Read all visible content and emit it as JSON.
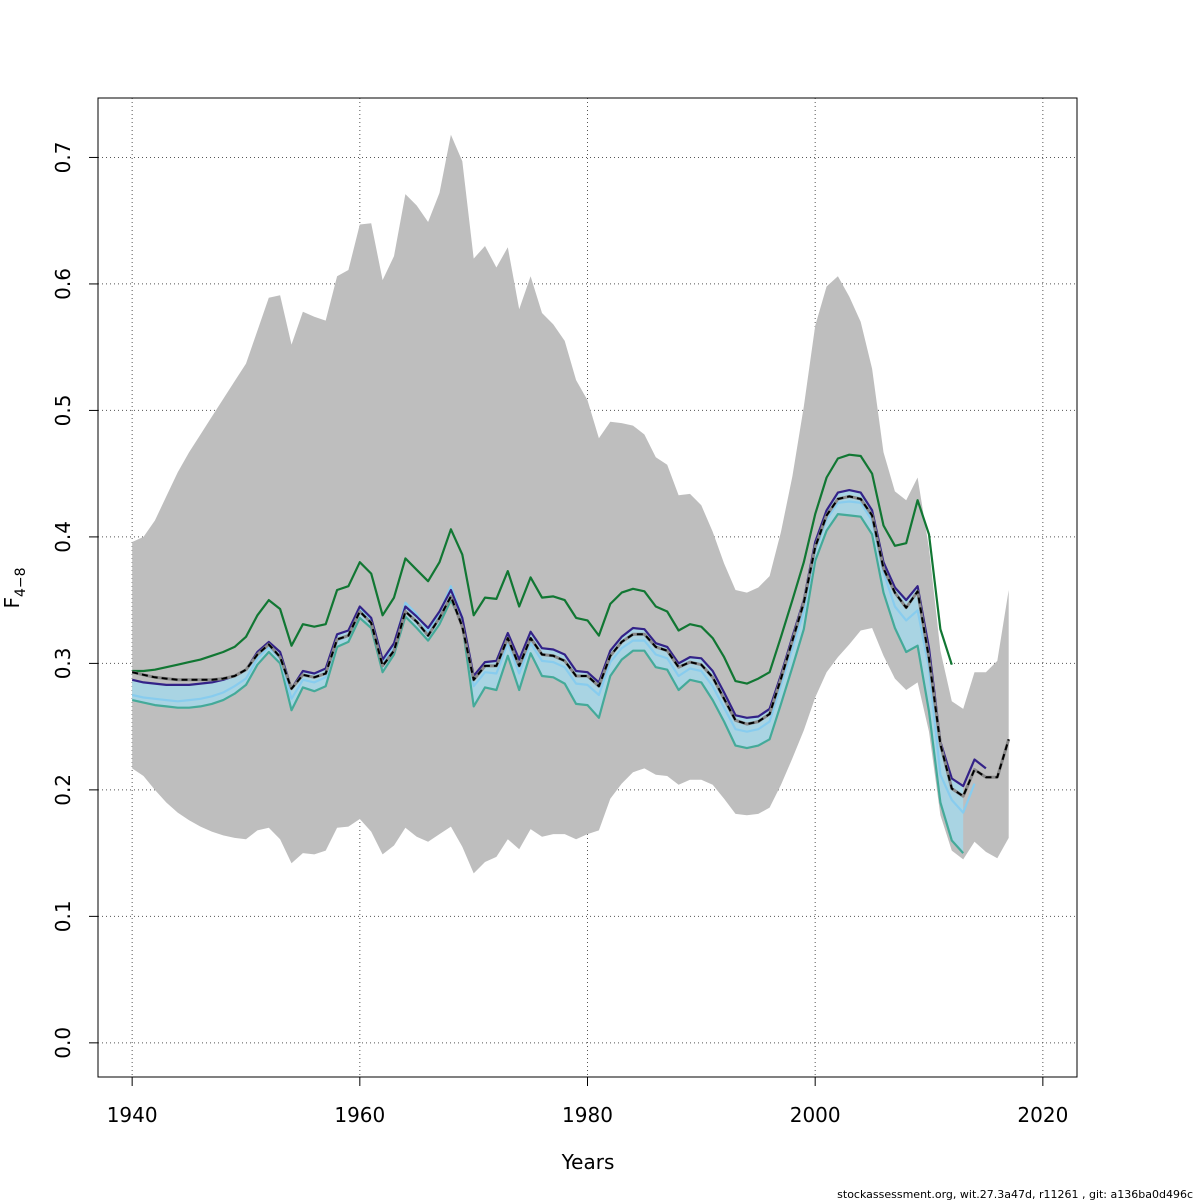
{
  "chart_data": {
    "type": "line",
    "xlabel": "Years",
    "ylabel": "F",
    "ylabel_sub": "4−8",
    "xlim": [
      1937,
      2023
    ],
    "ylim": [
      -0.027,
      0.747
    ],
    "x_ticks": [
      1940,
      1960,
      1980,
      2000,
      2020
    ],
    "x_tick_labels": [
      "1940",
      "1960",
      "1980",
      "2000",
      "2020"
    ],
    "y_ticks": [
      0.0,
      0.1,
      0.2,
      0.3,
      0.4,
      0.5,
      0.6,
      0.7
    ],
    "y_tick_labels": [
      "0.0",
      "0.1",
      "0.2",
      "0.3",
      "0.4",
      "0.5",
      "0.6",
      "0.7"
    ],
    "grid": true,
    "footer": "stockassessment.org, wit.27.3a47d, r11261 , git: a136ba0d496c",
    "colors": {
      "band": "#bebebe",
      "inner_band": "#a9d4e3",
      "green": "#117733",
      "teal": "#44aa99",
      "purple": "#332288",
      "lightblue": "#88ccee",
      "black": "#000000"
    },
    "band": {
      "x": [
        1940,
        1941,
        1942,
        1943,
        1944,
        1945,
        1946,
        1947,
        1948,
        1949,
        1950,
        1951,
        1952,
        1953,
        1954,
        1955,
        1956,
        1957,
        1958,
        1959,
        1960,
        1961,
        1962,
        1963,
        1964,
        1965,
        1966,
        1967,
        1968,
        1969,
        1970,
        1971,
        1972,
        1973,
        1974,
        1975,
        1976,
        1977,
        1978,
        1979,
        1980,
        1981,
        1982,
        1983,
        1984,
        1985,
        1986,
        1987,
        1988,
        1989,
        1990,
        1991,
        1992,
        1993,
        1994,
        1995,
        1996,
        1997,
        1998,
        1999,
        2000,
        2001,
        2002,
        2003,
        2004,
        2005,
        2006,
        2007,
        2008,
        2009,
        2010,
        2011,
        2012,
        2013,
        2014,
        2015,
        2016,
        2017
      ],
      "upper": [
        0.396,
        0.4,
        0.413,
        0.432,
        0.451,
        0.467,
        0.481,
        0.495,
        0.509,
        0.523,
        0.537,
        0.563,
        0.589,
        0.591,
        0.552,
        0.578,
        0.574,
        0.571,
        0.606,
        0.611,
        0.647,
        0.648,
        0.603,
        0.622,
        0.671,
        0.662,
        0.649,
        0.672,
        0.718,
        0.697,
        0.62,
        0.63,
        0.613,
        0.629,
        0.58,
        0.606,
        0.577,
        0.568,
        0.555,
        0.524,
        0.508,
        0.478,
        0.491,
        0.49,
        0.488,
        0.481,
        0.463,
        0.457,
        0.433,
        0.434,
        0.425,
        0.404,
        0.379,
        0.358,
        0.356,
        0.36,
        0.369,
        0.404,
        0.448,
        0.503,
        0.567,
        0.598,
        0.606,
        0.59,
        0.57,
        0.533,
        0.467,
        0.436,
        0.429,
        0.447,
        0.391,
        0.31,
        0.27,
        0.264,
        0.293,
        0.293,
        0.302,
        0.358
      ],
      "lower": [
        0.217,
        0.211,
        0.2,
        0.19,
        0.182,
        0.176,
        0.171,
        0.167,
        0.164,
        0.162,
        0.161,
        0.168,
        0.17,
        0.161,
        0.142,
        0.15,
        0.149,
        0.152,
        0.17,
        0.171,
        0.177,
        0.167,
        0.149,
        0.156,
        0.17,
        0.163,
        0.159,
        0.165,
        0.171,
        0.155,
        0.134,
        0.143,
        0.147,
        0.161,
        0.153,
        0.169,
        0.163,
        0.165,
        0.165,
        0.161,
        0.165,
        0.168,
        0.193,
        0.205,
        0.214,
        0.217,
        0.212,
        0.211,
        0.204,
        0.208,
        0.208,
        0.204,
        0.193,
        0.181,
        0.18,
        0.181,
        0.186,
        0.204,
        0.225,
        0.247,
        0.273,
        0.293,
        0.305,
        0.315,
        0.326,
        0.328,
        0.306,
        0.288,
        0.279,
        0.285,
        0.246,
        0.18,
        0.152,
        0.145,
        0.159,
        0.151,
        0.146,
        0.162
      ]
    },
    "series": [
      {
        "color": "green",
        "x": [
          1940,
          1941,
          1942,
          1943,
          1944,
          1945,
          1946,
          1947,
          1948,
          1949,
          1950,
          1951,
          1952,
          1953,
          1954,
          1955,
          1956,
          1957,
          1958,
          1959,
          1960,
          1961,
          1962,
          1963,
          1964,
          1965,
          1966,
          1967,
          1968,
          1969,
          1970,
          1971,
          1972,
          1973,
          1974,
          1975,
          1976,
          1977,
          1978,
          1979,
          1980,
          1981,
          1982,
          1983,
          1984,
          1985,
          1986,
          1987,
          1988,
          1989,
          1990,
          1991,
          1992,
          1993,
          1994,
          1995,
          1996,
          1997,
          1998,
          1999,
          2000,
          2001,
          2002,
          2003,
          2004,
          2005,
          2006,
          2007,
          2008,
          2009,
          2010,
          2011,
          2012
        ],
        "y": [
          0.294,
          0.294,
          0.295,
          0.297,
          0.299,
          0.301,
          0.303,
          0.306,
          0.309,
          0.313,
          0.321,
          0.338,
          0.35,
          0.343,
          0.314,
          0.331,
          0.329,
          0.331,
          0.358,
          0.361,
          0.38,
          0.371,
          0.338,
          0.352,
          0.383,
          0.374,
          0.365,
          0.38,
          0.406,
          0.386,
          0.338,
          0.352,
          0.351,
          0.373,
          0.345,
          0.368,
          0.352,
          0.353,
          0.35,
          0.336,
          0.334,
          0.322,
          0.347,
          0.356,
          0.359,
          0.357,
          0.345,
          0.341,
          0.326,
          0.331,
          0.329,
          0.32,
          0.305,
          0.286,
          0.284,
          0.288,
          0.293,
          0.321,
          0.35,
          0.38,
          0.418,
          0.447,
          0.462,
          0.465,
          0.464,
          0.45,
          0.409,
          0.393,
          0.395,
          0.429,
          0.402,
          0.327,
          0.299
        ]
      },
      {
        "color": "teal",
        "x": [
          1940,
          1941,
          1942,
          1943,
          1944,
          1945,
          1946,
          1947,
          1948,
          1949,
          1950,
          1951,
          1952,
          1953,
          1954,
          1955,
          1956,
          1957,
          1958,
          1959,
          1960,
          1961,
          1962,
          1963,
          1964,
          1965,
          1966,
          1967,
          1968,
          1969,
          1970,
          1971,
          1972,
          1973,
          1974,
          1975,
          1976,
          1977,
          1978,
          1979,
          1980,
          1981,
          1982,
          1983,
          1984,
          1985,
          1986,
          1987,
          1988,
          1989,
          1990,
          1991,
          1992,
          1993,
          1994,
          1995,
          1996,
          1997,
          1998,
          1999,
          2000,
          2001,
          2002,
          2003,
          2004,
          2005,
          2006,
          2007,
          2008,
          2009,
          2010,
          2011,
          2012,
          2013
        ],
        "y": [
          0.271,
          0.269,
          0.267,
          0.266,
          0.265,
          0.265,
          0.266,
          0.268,
          0.271,
          0.276,
          0.283,
          0.299,
          0.309,
          0.3,
          0.263,
          0.281,
          0.278,
          0.282,
          0.313,
          0.317,
          0.336,
          0.328,
          0.293,
          0.307,
          0.337,
          0.328,
          0.318,
          0.331,
          0.35,
          0.331,
          0.266,
          0.281,
          0.279,
          0.306,
          0.279,
          0.308,
          0.29,
          0.289,
          0.284,
          0.268,
          0.267,
          0.257,
          0.29,
          0.303,
          0.31,
          0.31,
          0.297,
          0.295,
          0.279,
          0.287,
          0.285,
          0.271,
          0.254,
          0.235,
          0.233,
          0.235,
          0.24,
          0.268,
          0.297,
          0.327,
          0.381,
          0.405,
          0.418,
          0.417,
          0.416,
          0.402,
          0.356,
          0.328,
          0.309,
          0.314,
          0.262,
          0.19,
          0.16,
          0.15
        ]
      },
      {
        "color": "lightblue",
        "x": [
          1940,
          1941,
          1942,
          1943,
          1944,
          1945,
          1946,
          1947,
          1948,
          1949,
          1950,
          1951,
          1952,
          1953,
          1954,
          1955,
          1956,
          1957,
          1958,
          1959,
          1960,
          1961,
          1962,
          1963,
          1964,
          1965,
          1966,
          1967,
          1968,
          1969,
          1970,
          1971,
          1972,
          1973,
          1974,
          1975,
          1976,
          1977,
          1978,
          1979,
          1980,
          1981,
          1982,
          1983,
          1984,
          1985,
          1986,
          1987,
          1988,
          1989,
          1990,
          1991,
          1992,
          1993,
          1994,
          1995,
          1996,
          1997,
          1998,
          1999,
          2000,
          2001,
          2002,
          2003,
          2004,
          2005,
          2006,
          2007,
          2008,
          2009,
          2010,
          2011,
          2012,
          2013,
          2014
        ],
        "y": [
          0.275,
          0.273,
          0.272,
          0.271,
          0.27,
          0.271,
          0.272,
          0.274,
          0.277,
          0.282,
          0.288,
          0.304,
          0.313,
          0.304,
          0.272,
          0.287,
          0.285,
          0.289,
          0.318,
          0.322,
          0.344,
          0.334,
          0.3,
          0.313,
          0.348,
          0.339,
          0.325,
          0.34,
          0.361,
          0.336,
          0.282,
          0.293,
          0.292,
          0.316,
          0.292,
          0.316,
          0.302,
          0.301,
          0.297,
          0.284,
          0.283,
          0.275,
          0.301,
          0.312,
          0.318,
          0.318,
          0.307,
          0.304,
          0.29,
          0.296,
          0.294,
          0.282,
          0.265,
          0.248,
          0.246,
          0.248,
          0.254,
          0.283,
          0.312,
          0.341,
          0.389,
          0.414,
          0.427,
          0.428,
          0.427,
          0.413,
          0.372,
          0.345,
          0.334,
          0.342,
          0.296,
          0.212,
          0.192,
          0.182,
          0.205
        ]
      },
      {
        "color": "purple",
        "x": [
          1940,
          1941,
          1942,
          1943,
          1944,
          1945,
          1946,
          1947,
          1948,
          1949,
          1950,
          1951,
          1952,
          1953,
          1954,
          1955,
          1956,
          1957,
          1958,
          1959,
          1960,
          1961,
          1962,
          1963,
          1964,
          1965,
          1966,
          1967,
          1968,
          1969,
          1970,
          1971,
          1972,
          1973,
          1974,
          1975,
          1976,
          1977,
          1978,
          1979,
          1980,
          1981,
          1982,
          1983,
          1984,
          1985,
          1986,
          1987,
          1988,
          1989,
          1990,
          1991,
          1992,
          1993,
          1994,
          1995,
          1996,
          1997,
          1998,
          1999,
          2000,
          2001,
          2002,
          2003,
          2004,
          2005,
          2006,
          2007,
          2008,
          2009,
          2010,
          2011,
          2012,
          2013,
          2014,
          2015
        ],
        "y": [
          0.287,
          0.285,
          0.284,
          0.283,
          0.283,
          0.283,
          0.284,
          0.285,
          0.287,
          0.29,
          0.295,
          0.309,
          0.317,
          0.309,
          0.28,
          0.294,
          0.292,
          0.296,
          0.323,
          0.326,
          0.345,
          0.336,
          0.303,
          0.316,
          0.345,
          0.337,
          0.328,
          0.341,
          0.358,
          0.336,
          0.29,
          0.301,
          0.302,
          0.324,
          0.303,
          0.325,
          0.312,
          0.311,
          0.307,
          0.294,
          0.293,
          0.285,
          0.31,
          0.321,
          0.328,
          0.327,
          0.316,
          0.313,
          0.3,
          0.305,
          0.304,
          0.294,
          0.277,
          0.259,
          0.257,
          0.258,
          0.264,
          0.291,
          0.321,
          0.35,
          0.396,
          0.421,
          0.435,
          0.437,
          0.435,
          0.421,
          0.38,
          0.36,
          0.35,
          0.361,
          0.312,
          0.238,
          0.209,
          0.203,
          0.224,
          0.217
        ]
      },
      {
        "color": "black",
        "dashed": true,
        "x": [
          1940,
          1941,
          1942,
          1943,
          1944,
          1945,
          1946,
          1947,
          1948,
          1949,
          1950,
          1951,
          1952,
          1953,
          1954,
          1955,
          1956,
          1957,
          1958,
          1959,
          1960,
          1961,
          1962,
          1963,
          1964,
          1965,
          1966,
          1967,
          1968,
          1969,
          1970,
          1971,
          1972,
          1973,
          1974,
          1975,
          1976,
          1977,
          1978,
          1979,
          1980,
          1981,
          1982,
          1983,
          1984,
          1985,
          1986,
          1987,
          1988,
          1989,
          1990,
          1991,
          1992,
          1993,
          1994,
          1995,
          1996,
          1997,
          1998,
          1999,
          2000,
          2001,
          2002,
          2003,
          2004,
          2005,
          2006,
          2007,
          2008,
          2009,
          2010,
          2011,
          2012,
          2013,
          2014,
          2015,
          2016,
          2017
        ],
        "y": [
          0.293,
          0.291,
          0.289,
          0.288,
          0.287,
          0.287,
          0.287,
          0.287,
          0.288,
          0.29,
          0.295,
          0.307,
          0.315,
          0.305,
          0.28,
          0.291,
          0.289,
          0.292,
          0.319,
          0.322,
          0.341,
          0.332,
          0.298,
          0.31,
          0.341,
          0.333,
          0.322,
          0.336,
          0.353,
          0.329,
          0.287,
          0.298,
          0.298,
          0.32,
          0.298,
          0.32,
          0.307,
          0.306,
          0.302,
          0.29,
          0.29,
          0.282,
          0.306,
          0.317,
          0.323,
          0.323,
          0.313,
          0.31,
          0.297,
          0.301,
          0.299,
          0.289,
          0.272,
          0.255,
          0.252,
          0.254,
          0.26,
          0.288,
          0.318,
          0.348,
          0.392,
          0.417,
          0.43,
          0.432,
          0.43,
          0.417,
          0.375,
          0.356,
          0.344,
          0.357,
          0.304,
          0.236,
          0.201,
          0.195,
          0.216,
          0.21,
          0.21,
          0.24
        ]
      }
    ]
  }
}
